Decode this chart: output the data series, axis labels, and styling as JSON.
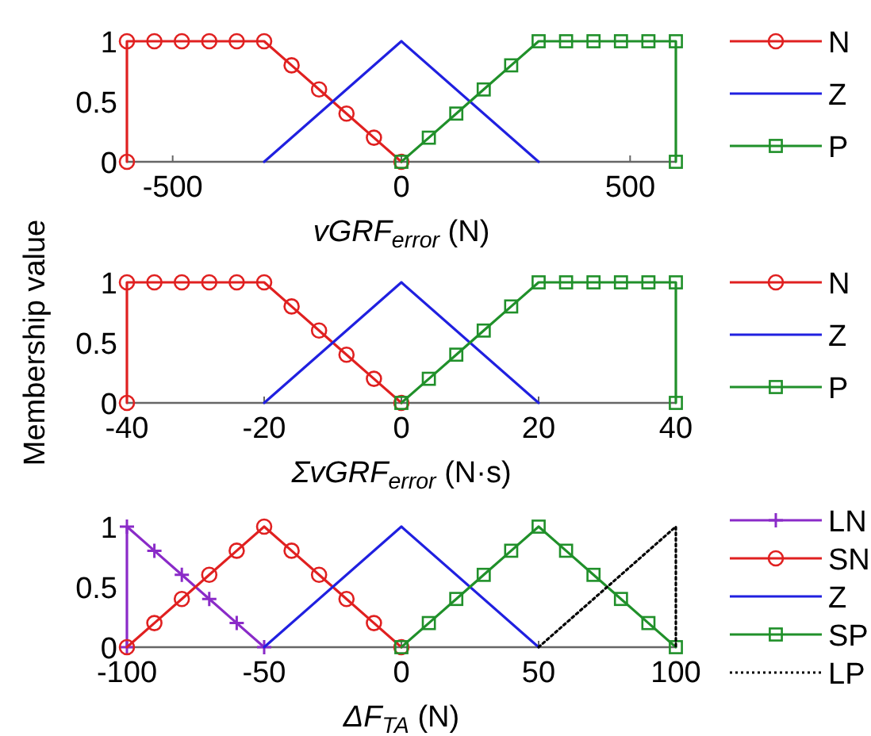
{
  "chart_data": [
    {
      "type": "line",
      "xlabel": "vGRF$_{error}$ (N)",
      "xlim": [
        -600,
        600
      ],
      "xticks": [
        -500,
        0,
        500
      ],
      "ylim": [
        0,
        1
      ],
      "yticks": [
        0,
        0.5,
        1
      ],
      "grid": false,
      "legend": "right",
      "series": [
        {
          "name": "N",
          "color": "#e02020",
          "marker": "circle",
          "x": [
            -600,
            -600,
            -540,
            -480,
            -420,
            -360,
            -300,
            -240,
            -180,
            -120,
            -60,
            0
          ],
          "values": [
            0,
            1,
            1,
            1,
            1,
            1,
            1,
            0.8,
            0.6,
            0.4,
            0.2,
            0
          ]
        },
        {
          "name": "Z",
          "color": "#2020e0",
          "marker": "none",
          "x": [
            -300,
            0,
            300
          ],
          "values": [
            0,
            1,
            0
          ]
        },
        {
          "name": "P",
          "color": "#20902a",
          "marker": "square",
          "x": [
            0,
            60,
            120,
            180,
            240,
            300,
            360,
            420,
            480,
            540,
            600,
            600
          ],
          "values": [
            0,
            0.2,
            0.4,
            0.6,
            0.8,
            1,
            1,
            1,
            1,
            1,
            1,
            0
          ]
        }
      ]
    },
    {
      "type": "line",
      "xlabel": "ΣvGRF$_{error}$ (N·s)",
      "ylabel": "Membership value",
      "xlim": [
        -40,
        40
      ],
      "xticks": [
        -40,
        -20,
        0,
        20,
        40
      ],
      "ylim": [
        0,
        1
      ],
      "yticks": [
        0,
        0.5,
        1
      ],
      "grid": false,
      "legend": "right",
      "series": [
        {
          "name": "N",
          "color": "#e02020",
          "marker": "circle",
          "x": [
            -40,
            -40,
            -36,
            -32,
            -28,
            -24,
            -20,
            -16,
            -12,
            -8,
            -4,
            0
          ],
          "values": [
            0,
            1,
            1,
            1,
            1,
            1,
            1,
            0.8,
            0.6,
            0.4,
            0.2,
            0
          ]
        },
        {
          "name": "Z",
          "color": "#2020e0",
          "marker": "none",
          "x": [
            -20,
            0,
            20
          ],
          "values": [
            0,
            1,
            0
          ]
        },
        {
          "name": "P",
          "color": "#20902a",
          "marker": "square",
          "x": [
            0,
            4,
            8,
            12,
            16,
            20,
            24,
            28,
            32,
            36,
            40,
            40
          ],
          "values": [
            0,
            0.2,
            0.4,
            0.6,
            0.8,
            1,
            1,
            1,
            1,
            1,
            1,
            0
          ]
        }
      ]
    },
    {
      "type": "line",
      "xlabel": "ΔF$_{TA}$ (N)",
      "xlim": [
        -100,
        100
      ],
      "xticks": [
        -100,
        -50,
        0,
        50,
        100
      ],
      "ylim": [
        0,
        1
      ],
      "yticks": [
        0,
        0.5,
        1
      ],
      "grid": false,
      "legend": "right",
      "series": [
        {
          "name": "LN",
          "color": "#8a2bc8",
          "marker": "cross",
          "x": [
            -100,
            -100,
            -90,
            -80,
            -70,
            -60,
            -50
          ],
          "values": [
            0,
            1,
            0.8,
            0.6,
            0.4,
            0.2,
            0
          ]
        },
        {
          "name": "SN",
          "color": "#e02020",
          "marker": "circle",
          "x": [
            -100,
            -90,
            -80,
            -70,
            -60,
            -50,
            -40,
            -30,
            -20,
            -10,
            0
          ],
          "values": [
            0,
            0.2,
            0.4,
            0.6,
            0.8,
            1,
            0.8,
            0.6,
            0.4,
            0.2,
            0
          ]
        },
        {
          "name": "Z",
          "color": "#2020e0",
          "marker": "none",
          "x": [
            -50,
            0,
            50
          ],
          "values": [
            0,
            1,
            0
          ]
        },
        {
          "name": "SP",
          "color": "#20902a",
          "marker": "square",
          "x": [
            0,
            10,
            20,
            30,
            40,
            50,
            60,
            70,
            80,
            90,
            100
          ],
          "values": [
            0,
            0.2,
            0.4,
            0.6,
            0.8,
            1,
            0.8,
            0.6,
            0.4,
            0.2,
            0
          ]
        },
        {
          "name": "LP",
          "color": "#000000",
          "marker": "none",
          "line_style": "dotted",
          "x": [
            50,
            100,
            100
          ],
          "values": [
            0,
            1,
            0
          ]
        }
      ]
    }
  ]
}
